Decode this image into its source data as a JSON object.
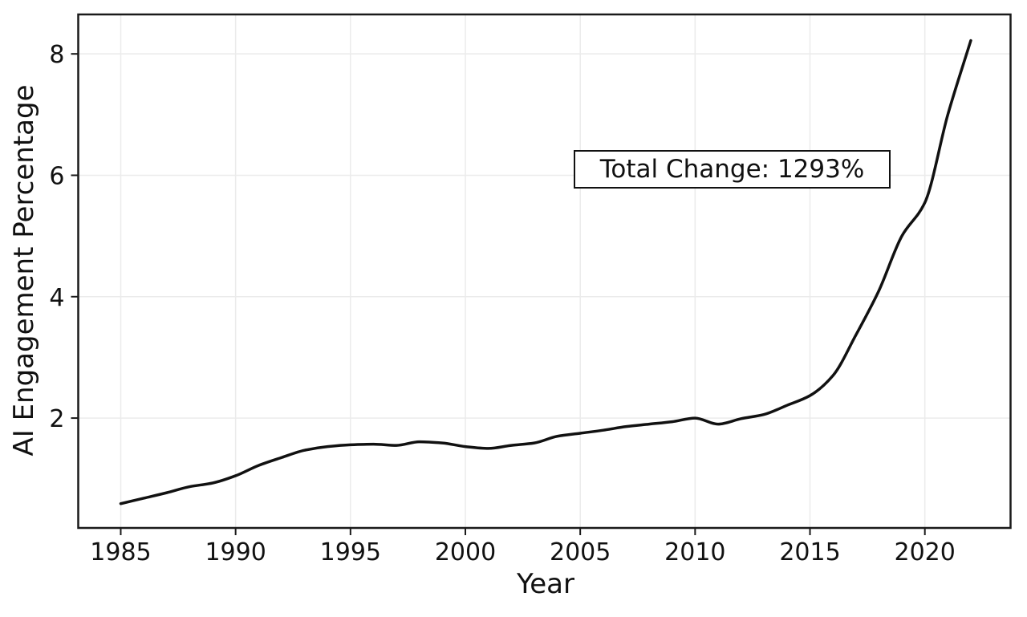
{
  "chart_data": {
    "type": "line",
    "title": "",
    "xlabel": "Year",
    "ylabel": "AI Engagement Percentage",
    "x_range": [
      1983.15,
      2023.73
    ],
    "y_range": [
      0.19,
      8.65
    ],
    "x_ticks": [
      "1985",
      "1990",
      "1995",
      "2000",
      "2005",
      "2010",
      "2015",
      "2020"
    ],
    "x_tick_values": [
      1985,
      1990,
      1995,
      2000,
      2005,
      2010,
      2015,
      2020
    ],
    "y_ticks": [
      "2",
      "4",
      "6",
      "8"
    ],
    "y_tick_values": [
      2,
      4,
      6,
      8
    ],
    "grid": true,
    "legend": "none",
    "line_color": "#111111",
    "line_width": 3.5,
    "grid_color": "#ebebeb",
    "axis_color": "#1a1a1a",
    "annotation": {
      "text": "Total Change: 1293%"
    },
    "series": [
      {
        "name": "AI Engagement Percentage",
        "x": [
          1985,
          1986,
          1987,
          1988,
          1989,
          1990,
          1991,
          1992,
          1993,
          1994,
          1995,
          1996,
          1997,
          1998,
          1999,
          2000,
          2001,
          2002,
          2003,
          2004,
          2005,
          2006,
          2007,
          2008,
          2009,
          2010,
          2011,
          2012,
          2013,
          2014,
          2015,
          2016,
          2017,
          2018,
          2019,
          2020,
          2021,
          2022
        ],
        "y": [
          0.59,
          0.68,
          0.77,
          0.87,
          0.93,
          1.05,
          1.22,
          1.35,
          1.47,
          1.53,
          1.56,
          1.57,
          1.55,
          1.61,
          1.59,
          1.53,
          1.5,
          1.55,
          1.59,
          1.7,
          1.75,
          1.8,
          1.86,
          1.9,
          1.94,
          2.0,
          1.9,
          1.99,
          2.06,
          2.21,
          2.37,
          2.7,
          3.37,
          4.1,
          5.0,
          5.55,
          7.0,
          8.22
        ]
      }
    ]
  }
}
